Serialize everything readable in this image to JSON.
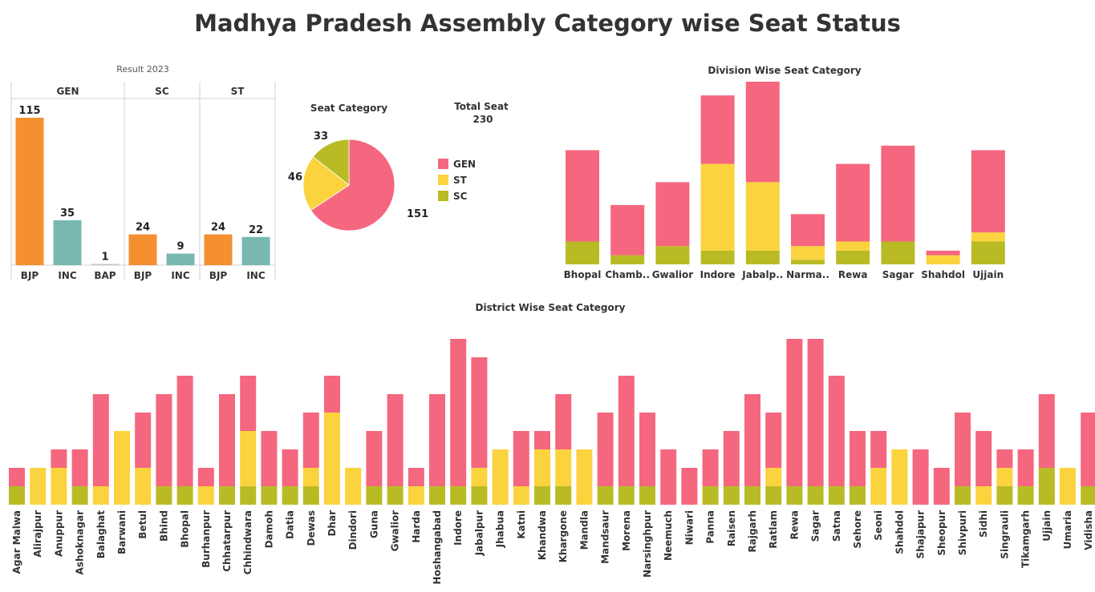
{
  "title": "Madhya Pradesh Assembly Category wise Seat Status",
  "colors": {
    "GEN": "#F4677F",
    "ST": "#FAD33E",
    "SC": "#B9BB25",
    "BJP": "#F49030",
    "INC": "#78B8B1",
    "BAP": "#C8C8C8"
  },
  "result_panel": {
    "title": "Result 2023",
    "groups": [
      {
        "label": "GEN",
        "bars": [
          {
            "party": "BJP",
            "value": 115
          },
          {
            "party": "INC",
            "value": 35
          },
          {
            "party": "BAP",
            "value": 1
          }
        ]
      },
      {
        "label": "SC",
        "bars": [
          {
            "party": "BJP",
            "value": 24
          },
          {
            "party": "INC",
            "value": 9
          }
        ]
      },
      {
        "label": "ST",
        "bars": [
          {
            "party": "BJP",
            "value": 24
          },
          {
            "party": "INC",
            "value": 22
          }
        ]
      }
    ]
  },
  "pie_panel": {
    "title": "Seat Category",
    "total_label": "Total Seat",
    "total_value": "230",
    "legend": [
      "GEN",
      "ST",
      "SC"
    ]
  },
  "chart_data": [
    {
      "type": "bar",
      "title": "Result 2023",
      "series": [
        {
          "category": "GEN",
          "categories": [
            "BJP",
            "INC",
            "BAP"
          ],
          "values": [
            115,
            35,
            1
          ]
        },
        {
          "category": "SC",
          "categories": [
            "BJP",
            "INC"
          ],
          "values": [
            24,
            9
          ]
        },
        {
          "category": "ST",
          "categories": [
            "BJP",
            "INC"
          ],
          "values": [
            24,
            22
          ]
        }
      ],
      "data_labels": true
    },
    {
      "type": "pie",
      "title": "Seat Category",
      "categories": [
        "GEN",
        "ST",
        "SC"
      ],
      "values": [
        151,
        46,
        33
      ]
    },
    {
      "type": "bar",
      "stacked": true,
      "title": "Division Wise Seat Category",
      "categories": [
        "Bhopal",
        "Chamb..",
        "Gwalior",
        "Indore",
        "Jabalp..",
        "Narma..",
        "Rewa",
        "Sagar",
        "Shahdol",
        "Ujjain"
      ],
      "series": [
        {
          "name": "SC",
          "values": [
            5,
            2,
            4,
            3,
            3,
            1,
            3,
            5,
            0,
            5
          ]
        },
        {
          "name": "ST",
          "values": [
            0,
            0,
            0,
            19,
            15,
            3,
            2,
            0,
            2,
            2
          ]
        },
        {
          "name": "GEN",
          "values": [
            20,
            11,
            14,
            15,
            22,
            7,
            17,
            21,
            1,
            18
          ]
        }
      ]
    },
    {
      "type": "bar",
      "stacked": true,
      "title": "District Wise Seat Category",
      "categories": [
        "Agar Malwa",
        "Alirajpur",
        "Anuppur",
        "Ashoknagar",
        "Balaghat",
        "Barwani",
        "Betul",
        "Bhind",
        "Bhopal",
        "Burhanpur",
        "Chhatarpur",
        "Chhindwara",
        "Damoh",
        "Datia",
        "Dewas",
        "Dhar",
        "Dindori",
        "Guna",
        "Gwalior",
        "Harda",
        "Hoshangabad",
        "Indore",
        "Jabalpur",
        "Jhabua",
        "Katni",
        "Khandwa",
        "Khargone",
        "Mandla",
        "Mandsaur",
        "Morena",
        "Narsinghpur",
        "Neemuch",
        "Niwari",
        "Panna",
        "Raisen",
        "Rajgarh",
        "Ratlam",
        "Rewa",
        "Sagar",
        "Satna",
        "Sehore",
        "Seoni",
        "Shahdol",
        "Shajapur",
        "Sheopur",
        "Shivpuri",
        "Sidhi",
        "Singrauli",
        "Tikamgarh",
        "Ujjain",
        "Umaria",
        "Vidisha"
      ],
      "series": [
        {
          "name": "SC",
          "values": [
            1,
            0,
            0,
            1,
            0,
            0,
            0,
            1,
            1,
            0,
            1,
            1,
            1,
            1,
            1,
            0,
            0,
            1,
            1,
            0,
            1,
            1,
            1,
            0,
            0,
            1,
            1,
            0,
            1,
            1,
            1,
            0,
            0,
            1,
            1,
            1,
            1,
            1,
            1,
            1,
            1,
            0,
            0,
            0,
            0,
            1,
            0,
            1,
            1,
            2,
            0,
            1
          ]
        },
        {
          "name": "ST",
          "values": [
            0,
            2,
            2,
            0,
            1,
            4,
            2,
            0,
            0,
            1,
            0,
            3,
            0,
            0,
            1,
            5,
            2,
            0,
            0,
            1,
            0,
            0,
            1,
            3,
            1,
            2,
            2,
            3,
            0,
            0,
            0,
            0,
            0,
            0,
            0,
            0,
            1,
            0,
            0,
            0,
            0,
            2,
            3,
            0,
            0,
            0,
            1,
            1,
            0,
            0,
            2,
            0
          ]
        },
        {
          "name": "GEN",
          "values": [
            1,
            0,
            1,
            2,
            5,
            0,
            3,
            5,
            6,
            1,
            5,
            3,
            3,
            2,
            3,
            2,
            0,
            3,
            5,
            1,
            5,
            8,
            6,
            0,
            3,
            1,
            3,
            0,
            4,
            6,
            4,
            3,
            2,
            2,
            3,
            5,
            3,
            8,
            8,
            6,
            3,
            2,
            0,
            3,
            2,
            4,
            3,
            1,
            2,
            4,
            0,
            4
          ]
        }
      ]
    }
  ]
}
